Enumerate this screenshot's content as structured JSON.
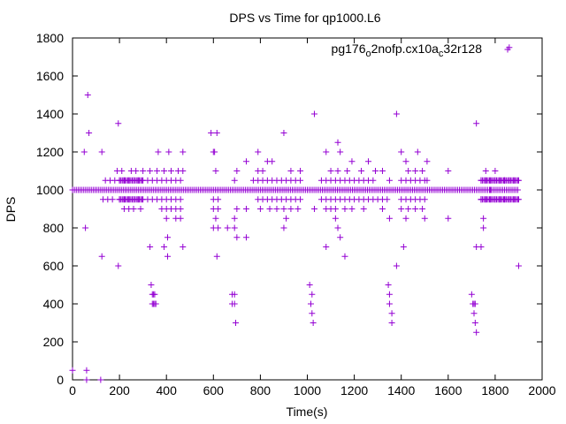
{
  "chart_data": {
    "type": "scatter",
    "title": "DPS vs Time for qp1000.L6",
    "xlabel": "Time(s)",
    "ylabel": "DPS",
    "xlim": [
      0,
      2000
    ],
    "ylim": [
      0,
      1800
    ],
    "xticks": [
      0,
      200,
      400,
      600,
      800,
      1000,
      1200,
      1400,
      1600,
      1800,
      2000
    ],
    "yticks": [
      0,
      200,
      400,
      600,
      800,
      1000,
      1200,
      1400,
      1600,
      1800
    ],
    "grid": false,
    "legend_position": "top-right",
    "marker": "plus",
    "series": [
      {
        "name": "pg176_o2nofp.cx10a_c32r128",
        "legend_parts": [
          {
            "text": "pg176",
            "sub": false
          },
          {
            "text": "o",
            "sub": true
          },
          {
            "text": "2nofp.cx10a",
            "sub": false
          },
          {
            "text": "c",
            "sub": true
          },
          {
            "text": "32r128",
            "sub": false
          }
        ],
        "color": "#9400d3",
        "points": [
          [
            0,
            50
          ],
          [
            60,
            50
          ],
          [
            60,
            0
          ],
          [
            120,
            0
          ],
          [
            55,
            800
          ],
          [
            50,
            1200
          ],
          [
            65,
            1500
          ],
          [
            70,
            1300
          ],
          [
            125,
            1200
          ],
          [
            125,
            650
          ],
          [
            195,
            1350
          ],
          [
            195,
            600
          ],
          [
            130,
            950
          ],
          [
            150,
            950
          ],
          [
            170,
            950
          ],
          [
            200,
            950
          ],
          [
            220,
            950
          ],
          [
            240,
            950
          ],
          [
            260,
            950
          ],
          [
            280,
            950
          ],
          [
            300,
            950
          ],
          [
            140,
            1050
          ],
          [
            160,
            1050
          ],
          [
            180,
            1050
          ],
          [
            200,
            1050
          ],
          [
            220,
            1050
          ],
          [
            240,
            1050
          ],
          [
            260,
            1050
          ],
          [
            280,
            1050
          ],
          [
            300,
            1050
          ],
          [
            190,
            1100
          ],
          [
            210,
            1100
          ],
          [
            250,
            1100
          ],
          [
            270,
            1100
          ],
          [
            300,
            1100
          ],
          [
            330,
            1100
          ],
          [
            220,
            900
          ],
          [
            240,
            900
          ],
          [
            260,
            900
          ],
          [
            290,
            900
          ],
          [
            320,
            1050
          ],
          [
            340,
            1050
          ],
          [
            360,
            1050
          ],
          [
            380,
            1050
          ],
          [
            400,
            1050
          ],
          [
            420,
            1050
          ],
          [
            440,
            1050
          ],
          [
            460,
            1050
          ],
          [
            320,
            950
          ],
          [
            340,
            950
          ],
          [
            360,
            950
          ],
          [
            380,
            950
          ],
          [
            400,
            950
          ],
          [
            420,
            950
          ],
          [
            440,
            950
          ],
          [
            460,
            950
          ],
          [
            360,
            1100
          ],
          [
            390,
            1100
          ],
          [
            420,
            1100
          ],
          [
            450,
            1100
          ],
          [
            470,
            1100
          ],
          [
            380,
            900
          ],
          [
            400,
            900
          ],
          [
            420,
            900
          ],
          [
            440,
            900
          ],
          [
            460,
            900
          ],
          [
            365,
            1200
          ],
          [
            410,
            1200
          ],
          [
            470,
            1200
          ],
          [
            330,
            700
          ],
          [
            390,
            700
          ],
          [
            470,
            700
          ],
          [
            400,
            850
          ],
          [
            440,
            850
          ],
          [
            460,
            850
          ],
          [
            405,
            650
          ],
          [
            405,
            750
          ],
          [
            335,
            500
          ],
          [
            340,
            450
          ],
          [
            345,
            450
          ],
          [
            350,
            450
          ],
          [
            340,
            400
          ],
          [
            345,
            400
          ],
          [
            350,
            400
          ],
          [
            355,
            400
          ],
          [
            590,
            1300
          ],
          [
            615,
            1300
          ],
          [
            600,
            1200
          ],
          [
            605,
            1200
          ],
          [
            610,
            1100
          ],
          [
            600,
            950
          ],
          [
            620,
            950
          ],
          [
            600,
            900
          ],
          [
            620,
            900
          ],
          [
            610,
            850
          ],
          [
            600,
            800
          ],
          [
            620,
            800
          ],
          [
            615,
            650
          ],
          [
            660,
            800
          ],
          [
            690,
            800
          ],
          [
            700,
            750
          ],
          [
            680,
            450
          ],
          [
            690,
            450
          ],
          [
            680,
            400
          ],
          [
            690,
            400
          ],
          [
            695,
            300
          ],
          [
            690,
            1050
          ],
          [
            700,
            1100
          ],
          [
            700,
            900
          ],
          [
            690,
            850
          ],
          [
            740,
            1150
          ],
          [
            740,
            900
          ],
          [
            740,
            750
          ],
          [
            790,
            1200
          ],
          [
            790,
            1100
          ],
          [
            810,
            1100
          ],
          [
            830,
            1150
          ],
          [
            850,
            1150
          ],
          [
            770,
            1050
          ],
          [
            790,
            1050
          ],
          [
            810,
            1050
          ],
          [
            830,
            1050
          ],
          [
            850,
            1050
          ],
          [
            870,
            1050
          ],
          [
            890,
            1050
          ],
          [
            910,
            1050
          ],
          [
            930,
            1050
          ],
          [
            950,
            1050
          ],
          [
            970,
            1050
          ],
          [
            790,
            950
          ],
          [
            810,
            950
          ],
          [
            830,
            950
          ],
          [
            850,
            950
          ],
          [
            870,
            950
          ],
          [
            890,
            950
          ],
          [
            910,
            950
          ],
          [
            930,
            950
          ],
          [
            950,
            950
          ],
          [
            970,
            950
          ],
          [
            800,
            900
          ],
          [
            840,
            900
          ],
          [
            870,
            900
          ],
          [
            900,
            900
          ],
          [
            930,
            900
          ],
          [
            960,
            900
          ],
          [
            900,
            1300
          ],
          [
            900,
            800
          ],
          [
            910,
            850
          ],
          [
            930,
            1100
          ],
          [
            970,
            1100
          ],
          [
            1030,
            1400
          ],
          [
            1030,
            900
          ],
          [
            1080,
            1200
          ],
          [
            1080,
            700
          ],
          [
            1010,
            500
          ],
          [
            1020,
            450
          ],
          [
            1015,
            400
          ],
          [
            1020,
            350
          ],
          [
            1025,
            300
          ],
          [
            1060,
            1050
          ],
          [
            1080,
            1050
          ],
          [
            1100,
            1050
          ],
          [
            1120,
            1050
          ],
          [
            1140,
            1050
          ],
          [
            1160,
            1050
          ],
          [
            1180,
            1050
          ],
          [
            1200,
            1050
          ],
          [
            1220,
            1050
          ],
          [
            1240,
            1050
          ],
          [
            1260,
            1050
          ],
          [
            1280,
            1050
          ],
          [
            1060,
            950
          ],
          [
            1080,
            950
          ],
          [
            1100,
            950
          ],
          [
            1120,
            950
          ],
          [
            1140,
            950
          ],
          [
            1160,
            950
          ],
          [
            1180,
            950
          ],
          [
            1200,
            950
          ],
          [
            1220,
            950
          ],
          [
            1240,
            950
          ],
          [
            1260,
            950
          ],
          [
            1280,
            950
          ],
          [
            1080,
            900
          ],
          [
            1100,
            900
          ],
          [
            1120,
            900
          ],
          [
            1160,
            900
          ],
          [
            1190,
            900
          ],
          [
            1240,
            900
          ],
          [
            1100,
            1100
          ],
          [
            1130,
            1100
          ],
          [
            1170,
            1100
          ],
          [
            1190,
            1150
          ],
          [
            1230,
            1100
          ],
          [
            1260,
            1150
          ],
          [
            1290,
            1100
          ],
          [
            1320,
            1100
          ],
          [
            1130,
            1250
          ],
          [
            1140,
            1200
          ],
          [
            1120,
            850
          ],
          [
            1130,
            800
          ],
          [
            1140,
            750
          ],
          [
            1160,
            650
          ],
          [
            1300,
            950
          ],
          [
            1320,
            950
          ],
          [
            1340,
            950
          ],
          [
            1320,
            900
          ],
          [
            1350,
            850
          ],
          [
            1350,
            1050
          ],
          [
            1345,
            500
          ],
          [
            1350,
            450
          ],
          [
            1350,
            400
          ],
          [
            1360,
            350
          ],
          [
            1360,
            300
          ],
          [
            1380,
            1400
          ],
          [
            1380,
            600
          ],
          [
            1400,
            1200
          ],
          [
            1420,
            1150
          ],
          [
            1410,
            700
          ],
          [
            1400,
            1050
          ],
          [
            1420,
            1050
          ],
          [
            1440,
            1050
          ],
          [
            1460,
            1050
          ],
          [
            1480,
            1050
          ],
          [
            1500,
            1050
          ],
          [
            1400,
            950
          ],
          [
            1420,
            950
          ],
          [
            1440,
            950
          ],
          [
            1460,
            950
          ],
          [
            1480,
            950
          ],
          [
            1500,
            950
          ],
          [
            1400,
            900
          ],
          [
            1430,
            900
          ],
          [
            1460,
            900
          ],
          [
            1490,
            900
          ],
          [
            1430,
            1100
          ],
          [
            1460,
            1100
          ],
          [
            1490,
            1100
          ],
          [
            1470,
            1200
          ],
          [
            1420,
            850
          ],
          [
            1500,
            850
          ],
          [
            1510,
            1150
          ],
          [
            1510,
            1050
          ],
          [
            1600,
            1100
          ],
          [
            1600,
            850
          ],
          [
            1700,
            450
          ],
          [
            1705,
            400
          ],
          [
            1710,
            400
          ],
          [
            1715,
            400
          ],
          [
            1710,
            350
          ],
          [
            1715,
            300
          ],
          [
            1720,
            250
          ],
          [
            1720,
            700
          ],
          [
            1740,
            700
          ],
          [
            1720,
            1350
          ],
          [
            1740,
            950
          ],
          [
            1750,
            850
          ],
          [
            1750,
            800
          ],
          [
            1740,
            1050
          ],
          [
            1760,
            1050
          ],
          [
            1780,
            1050
          ],
          [
            1800,
            1050
          ],
          [
            1820,
            1050
          ],
          [
            1840,
            1050
          ],
          [
            1860,
            1050
          ],
          [
            1880,
            1050
          ],
          [
            1900,
            1050
          ],
          [
            1740,
            950
          ],
          [
            1760,
            950
          ],
          [
            1780,
            950
          ],
          [
            1800,
            950
          ],
          [
            1820,
            950
          ],
          [
            1840,
            950
          ],
          [
            1860,
            950
          ],
          [
            1880,
            950
          ],
          [
            1900,
            950
          ],
          [
            1760,
            1100
          ],
          [
            1800,
            1100
          ],
          [
            1780,
            1000
          ],
          [
            1860,
            1750
          ],
          [
            1900,
            600
          ],
          [
            1840,
            1050
          ]
        ]
      }
    ],
    "dense_bands": [
      {
        "y": 1000,
        "x_start": 0,
        "x_end": 1900,
        "step": 8
      },
      {
        "y": 1050,
        "x_start": 200,
        "x_end": 300,
        "step": 6
      },
      {
        "y": 950,
        "x_start": 200,
        "x_end": 300,
        "step": 6
      },
      {
        "y": 1050,
        "x_start": 1740,
        "x_end": 1900,
        "step": 6
      },
      {
        "y": 950,
        "x_start": 1740,
        "x_end": 1900,
        "step": 6
      }
    ]
  }
}
